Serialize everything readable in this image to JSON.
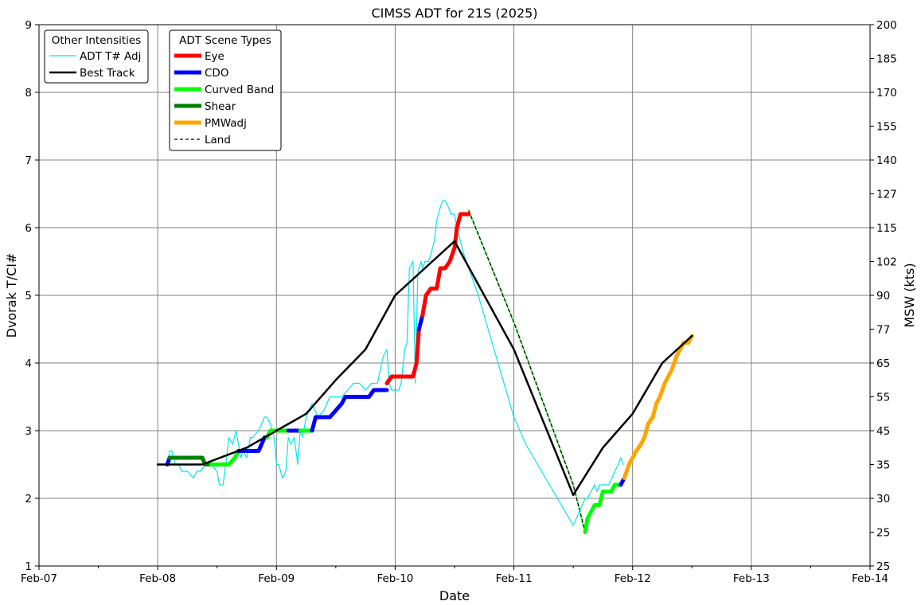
{
  "chart_data": {
    "type": "line",
    "title": "CIMSS ADT for 21S (2025)",
    "xlabel": "Date",
    "ylabel": "Dvorak T/CI#",
    "y2label": "MSW (kts)",
    "xlim": [
      0,
      7
    ],
    "ylim": [
      1,
      9
    ],
    "grid": true,
    "x_ticks": [
      {
        "x": 0,
        "label": "Feb-07"
      },
      {
        "x": 1,
        "label": "Feb-08"
      },
      {
        "x": 2,
        "label": "Feb-09"
      },
      {
        "x": 3,
        "label": "Feb-10"
      },
      {
        "x": 4,
        "label": "Feb-11"
      },
      {
        "x": 5,
        "label": "Feb-12"
      },
      {
        "x": 6,
        "label": "Feb-13"
      },
      {
        "x": 7,
        "label": "Feb-14"
      }
    ],
    "y_ticks": [
      "1",
      "2",
      "3",
      "4",
      "5",
      "6",
      "7",
      "8",
      "9"
    ],
    "y2_ticks": [
      {
        "t": 1,
        "label": "25"
      },
      {
        "t": 1.5,
        "label": "25"
      },
      {
        "t": 2,
        "label": "30"
      },
      {
        "t": 2.5,
        "label": "35"
      },
      {
        "t": 3,
        "label": "45"
      },
      {
        "t": 3.5,
        "label": "55"
      },
      {
        "t": 4,
        "label": "65"
      },
      {
        "t": 4.5,
        "label": "77"
      },
      {
        "t": 5,
        "label": "90"
      },
      {
        "t": 5.5,
        "label": "102"
      },
      {
        "t": 6,
        "label": "115"
      },
      {
        "t": 6.5,
        "label": "127"
      },
      {
        "t": 7,
        "label": "140"
      },
      {
        "t": 7.5,
        "label": "155"
      },
      {
        "t": 8,
        "label": "170"
      },
      {
        "t": 8.5,
        "label": "185"
      },
      {
        "t": 9,
        "label": "200"
      }
    ],
    "legend_other": {
      "title": "Other Intensities",
      "placement": "top-left",
      "items": [
        {
          "name": "ADT T# Adj",
          "color": "#00e5ee",
          "width": 1.2
        },
        {
          "name": "Best Track",
          "color": "#000000",
          "width": 2.5
        }
      ]
    },
    "legend_scene": {
      "title": "ADT Scene Types",
      "placement": "top-left",
      "items": [
        {
          "name": "Eye",
          "color": "#ff0000",
          "width": 5
        },
        {
          "name": "CDO",
          "color": "#0000ff",
          "width": 5
        },
        {
          "name": "Curved Band",
          "color": "#00ff00",
          "width": 5
        },
        {
          "name": "Shear",
          "color": "#008000",
          "width": 5
        },
        {
          "name": "PMWadj",
          "color": "#ffa500",
          "width": 5
        },
        {
          "name": "Land",
          "color": "#000000",
          "width": 1.2,
          "dash": true
        }
      ]
    },
    "series": [
      {
        "name": "Best Track",
        "color": "#000000",
        "width": 2.5,
        "x": [
          1.0,
          1.375,
          1.75,
          2.0,
          2.25,
          2.5,
          2.75,
          3.0,
          3.25,
          3.5,
          4.0,
          4.5,
          4.75,
          5.0,
          5.25,
          5.5
        ],
        "y": [
          2.5,
          2.5,
          2.75,
          3.0,
          3.25,
          3.75,
          4.2,
          5.0,
          5.4,
          5.8,
          4.2,
          2.05,
          2.75,
          3.25,
          4.0,
          4.4
        ]
      },
      {
        "name": "ADT T# Adj",
        "color": "#00e5ee",
        "width": 1.2,
        "x": [
          1.08,
          1.1,
          1.12,
          1.15,
          1.18,
          1.2,
          1.25,
          1.3,
          1.33,
          1.36,
          1.4,
          1.45,
          1.5,
          1.52,
          1.55,
          1.58,
          1.6,
          1.63,
          1.66,
          1.7,
          1.72,
          1.75,
          1.78,
          1.8,
          1.85,
          1.9,
          1.92,
          1.95,
          1.98,
          2.0,
          2.02,
          2.05,
          2.08,
          2.1,
          2.12,
          2.15,
          2.18,
          2.2,
          2.22,
          2.25,
          2.3,
          2.35,
          2.4,
          2.45,
          2.5,
          2.55,
          2.6,
          2.65,
          2.7,
          2.75,
          2.8,
          2.85,
          2.9,
          2.93,
          2.95,
          2.97,
          3.0,
          3.03,
          3.05,
          3.08,
          3.1,
          3.12,
          3.15,
          3.17,
          3.19,
          3.2,
          3.22,
          3.23,
          3.25,
          3.28,
          3.3,
          3.33,
          3.35,
          3.38,
          3.4,
          3.42,
          3.45,
          3.47,
          3.5,
          3.52,
          3.55,
          3.58,
          3.62,
          3.66,
          3.7,
          3.75,
          3.8,
          3.85,
          3.9,
          3.95,
          4.0,
          4.1,
          4.2,
          4.3,
          4.4,
          4.5,
          4.6,
          4.62,
          4.65,
          4.68,
          4.7,
          4.72,
          4.75,
          4.78,
          4.8,
          4.85,
          4.88,
          4.9,
          4.92
        ],
        "y": [
          2.5,
          2.7,
          2.7,
          2.5,
          2.5,
          2.4,
          2.4,
          2.3,
          2.4,
          2.4,
          2.5,
          2.5,
          2.4,
          2.2,
          2.2,
          2.6,
          2.9,
          2.8,
          3.0,
          2.6,
          2.7,
          2.6,
          2.9,
          2.9,
          3.0,
          3.2,
          3.2,
          3.1,
          2.9,
          2.5,
          2.5,
          2.3,
          2.4,
          2.9,
          2.8,
          2.9,
          2.5,
          3.0,
          2.9,
          3.2,
          3.4,
          3.2,
          3.3,
          3.5,
          3.5,
          3.5,
          3.6,
          3.7,
          3.7,
          3.6,
          3.7,
          3.7,
          4.1,
          4.2,
          3.7,
          3.6,
          3.6,
          3.6,
          3.7,
          4.2,
          4.3,
          5.4,
          5.5,
          3.7,
          5.3,
          5.4,
          5.5,
          5.4,
          5.5,
          5.5,
          5.6,
          5.8,
          6.1,
          6.3,
          6.4,
          6.4,
          6.3,
          6.2,
          6.2,
          6.0,
          5.8,
          5.6,
          5.4,
          5.2,
          5.0,
          4.7,
          4.4,
          4.1,
          3.8,
          3.5,
          3.2,
          2.8,
          2.5,
          2.2,
          1.9,
          1.6,
          2.0,
          2.0,
          2.1,
          2.2,
          2.1,
          2.2,
          2.2,
          2.2,
          2.2,
          2.4,
          2.5,
          2.6,
          2.5
        ]
      }
    ],
    "scene_segments": [
      {
        "name": "CDO",
        "x": [
          1.08,
          1.1
        ],
        "y": [
          2.5,
          2.6
        ]
      },
      {
        "name": "Shear",
        "x": [
          1.1,
          1.375,
          1.4,
          1.45
        ],
        "y": [
          2.6,
          2.6,
          2.5,
          2.5
        ]
      },
      {
        "name": "Curved Band",
        "x": [
          1.45,
          1.6,
          1.65,
          1.68
        ],
        "y": [
          2.5,
          2.5,
          2.6,
          2.7
        ]
      },
      {
        "name": "CDO",
        "x": [
          1.68,
          1.85,
          1.9,
          1.92
        ],
        "y": [
          2.7,
          2.7,
          2.9,
          2.9
        ]
      },
      {
        "name": "Curved Band",
        "x": [
          1.92,
          1.95,
          2.05,
          2.1
        ],
        "y": [
          2.9,
          3.0,
          3.0,
          3.0
        ]
      },
      {
        "name": "CDO",
        "x": [
          2.1,
          2.2
        ],
        "y": [
          3.0,
          3.0
        ]
      },
      {
        "name": "Curved Band",
        "x": [
          2.2,
          2.3
        ],
        "y": [
          3.0,
          3.0
        ]
      },
      {
        "name": "CDO",
        "x": [
          2.3,
          2.33,
          2.45,
          2.5,
          2.55,
          2.58,
          2.78,
          2.82,
          2.93
        ],
        "y": [
          3.0,
          3.2,
          3.2,
          3.3,
          3.4,
          3.5,
          3.5,
          3.6,
          3.6
        ]
      },
      {
        "name": "Eye",
        "x": [
          2.93,
          2.97,
          3.15,
          3.18,
          3.2
        ],
        "y": [
          3.7,
          3.8,
          3.8,
          4.0,
          4.5
        ]
      },
      {
        "name": "CDO",
        "x": [
          3.2,
          3.23
        ],
        "y": [
          4.5,
          4.7
        ]
      },
      {
        "name": "Eye",
        "x": [
          3.23,
          3.26,
          3.3,
          3.35,
          3.38,
          3.42,
          3.46,
          3.5,
          3.52,
          3.55,
          3.6,
          3.62
        ],
        "y": [
          4.7,
          5.0,
          5.1,
          5.1,
          5.4,
          5.4,
          5.5,
          5.7,
          6.0,
          6.2,
          6.2,
          6.2
        ]
      }
    ],
    "land_segments": [
      {
        "x": [
          3.62,
          4.0,
          4.5,
          4.6
        ],
        "y": [
          6.25,
          4.6,
          2.2,
          1.5
        ]
      }
    ],
    "late_segments": [
      {
        "name": "Curved Band",
        "x": [
          4.6,
          4.62,
          4.65,
          4.68,
          4.72,
          4.75,
          4.82,
          4.85,
          4.9
        ],
        "y": [
          1.5,
          1.7,
          1.8,
          1.9,
          1.9,
          2.1,
          2.1,
          2.2,
          2.2
        ]
      },
      {
        "name": "CDO",
        "x": [
          4.9,
          4.93
        ],
        "y": [
          2.2,
          2.3
        ]
      },
      {
        "name": "PMWadj",
        "x": [
          4.93,
          4.97,
          5.0,
          5.03,
          5.07,
          5.1,
          5.13,
          5.17,
          5.2,
          5.23,
          5.27,
          5.3,
          5.33,
          5.37,
          5.4,
          5.43,
          5.47,
          5.5
        ],
        "y": [
          2.3,
          2.5,
          2.6,
          2.7,
          2.8,
          2.9,
          3.1,
          3.2,
          3.4,
          3.5,
          3.7,
          3.8,
          3.9,
          4.1,
          4.2,
          4.3,
          4.3,
          4.4
        ]
      }
    ]
  }
}
